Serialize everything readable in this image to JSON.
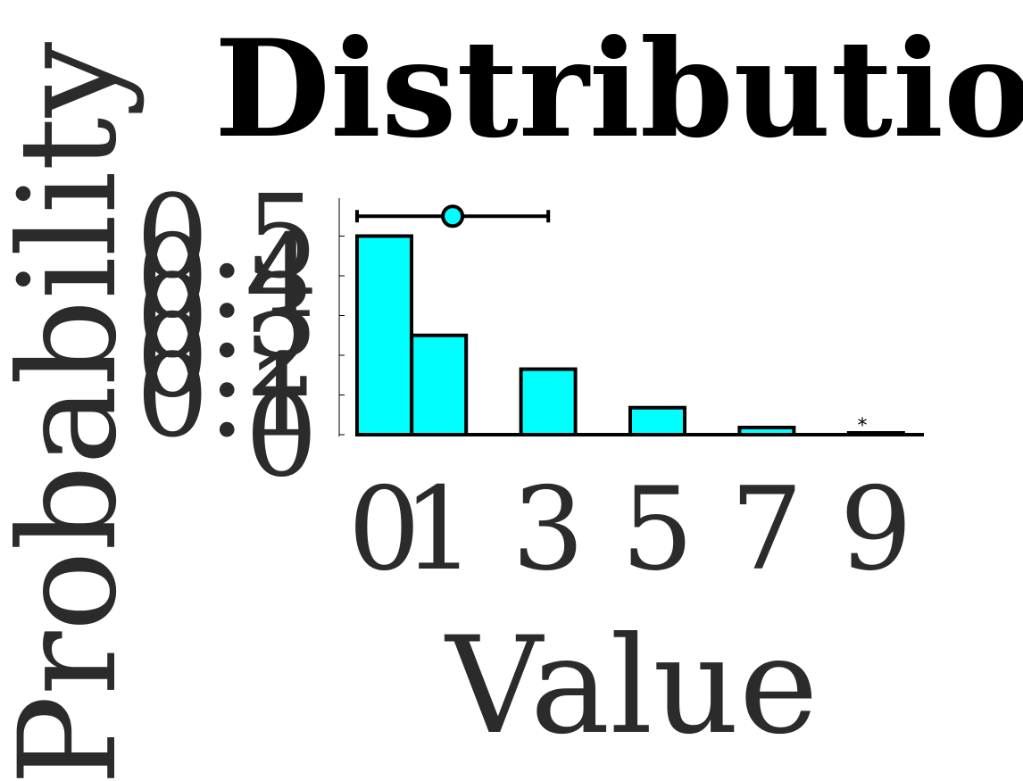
{
  "chart_data": {
    "type": "bar",
    "title": "Distribution",
    "xlabel": "Value",
    "ylabel": "Probability va",
    "x": [
      0,
      1,
      3,
      5,
      7,
      9
    ],
    "values": [
      0.5,
      0.25,
      0.165,
      0.068,
      0.018,
      0.002
    ],
    "xticks": [
      0,
      1,
      3,
      5,
      7,
      9
    ],
    "xtick_labels": [
      "0",
      "1",
      "3",
      "5",
      "7",
      "9"
    ],
    "yticks": [
      0,
      0.1,
      0.2,
      0.3,
      0.4,
      0.5
    ],
    "ytick_labels": [
      "0",
      "0.1",
      "0.2",
      "0.3",
      "0.4",
      "0.5"
    ],
    "xlim": [
      -0.5,
      9.5
    ],
    "ylim": [
      0,
      0.6
    ],
    "summary": {
      "mean": 1.75,
      "lower": 0,
      "upper": 3.5,
      "y": 0.55
    },
    "annotations": [
      {
        "text": "*",
        "x": 9,
        "y": 0.002
      }
    ],
    "grid": false,
    "colors": {
      "bar_fill": "#00FFFF",
      "bar_edge": "#000000",
      "marker_fill": "#00FFFF",
      "text": "#2b2b2b"
    }
  }
}
